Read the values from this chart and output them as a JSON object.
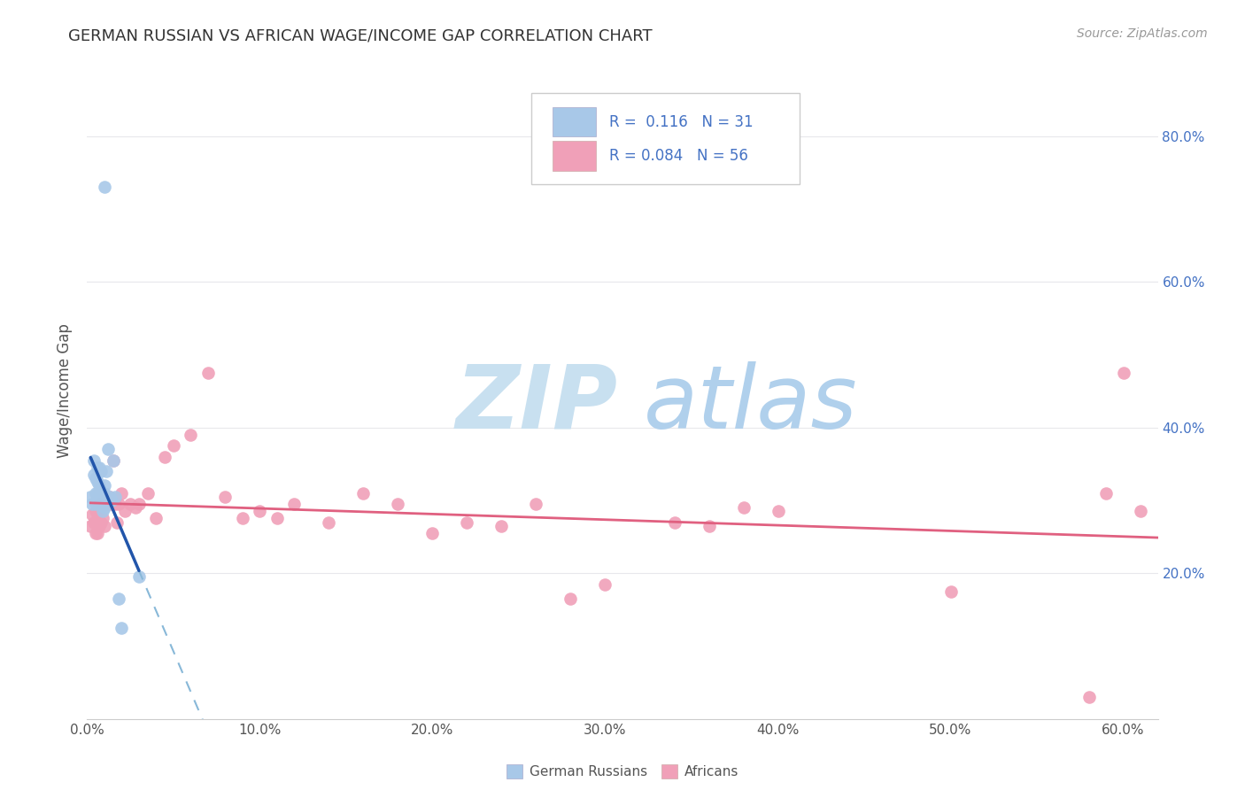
{
  "title": "GERMAN RUSSIAN VS AFRICAN WAGE/INCOME GAP CORRELATION CHART",
  "source": "Source: ZipAtlas.com",
  "ylabel": "Wage/Income Gap",
  "xlim": [
    0.0,
    0.62
  ],
  "ylim": [
    0.0,
    0.9
  ],
  "x_ticks": [
    0.0,
    0.1,
    0.2,
    0.3,
    0.4,
    0.5,
    0.6
  ],
  "y_ticks_right": [
    0.2,
    0.4,
    0.6,
    0.8
  ],
  "R_blue": 0.116,
  "N_blue": 31,
  "R_pink": 0.084,
  "N_pink": 56,
  "blue_scatter_color": "#a8c8e8",
  "blue_line_color": "#2255aa",
  "blue_dash_color": "#88b8d8",
  "pink_scatter_color": "#f0a0b8",
  "pink_line_color": "#e06080",
  "watermark_zip_color": "#c8e0f0",
  "watermark_atlas_color": "#b0d0ec",
  "bg_color": "#ffffff",
  "grid_color": "#e8e8ec",
  "right_label_color": "#4472c4",
  "blue_x": [
    0.002,
    0.003,
    0.004,
    0.004,
    0.005,
    0.005,
    0.005,
    0.006,
    0.006,
    0.006,
    0.007,
    0.007,
    0.007,
    0.008,
    0.008,
    0.008,
    0.009,
    0.009,
    0.01,
    0.01,
    0.01,
    0.011,
    0.012,
    0.013,
    0.014,
    0.015,
    0.016,
    0.018,
    0.02,
    0.03,
    0.01
  ],
  "blue_y": [
    0.305,
    0.295,
    0.335,
    0.355,
    0.295,
    0.31,
    0.33,
    0.31,
    0.325,
    0.345,
    0.3,
    0.32,
    0.345,
    0.31,
    0.295,
    0.34,
    0.285,
    0.305,
    0.31,
    0.29,
    0.32,
    0.34,
    0.37,
    0.305,
    0.3,
    0.355,
    0.305,
    0.165,
    0.125,
    0.195,
    0.73
  ],
  "pink_x": [
    0.002,
    0.003,
    0.004,
    0.005,
    0.005,
    0.006,
    0.006,
    0.007,
    0.007,
    0.008,
    0.008,
    0.009,
    0.01,
    0.01,
    0.011,
    0.012,
    0.013,
    0.014,
    0.015,
    0.016,
    0.017,
    0.018,
    0.02,
    0.022,
    0.025,
    0.028,
    0.03,
    0.035,
    0.04,
    0.045,
    0.05,
    0.06,
    0.07,
    0.08,
    0.09,
    0.1,
    0.11,
    0.12,
    0.14,
    0.16,
    0.18,
    0.2,
    0.22,
    0.24,
    0.26,
    0.28,
    0.3,
    0.34,
    0.36,
    0.38,
    0.4,
    0.5,
    0.58,
    0.59,
    0.6,
    0.61
  ],
  "pink_y": [
    0.265,
    0.28,
    0.27,
    0.285,
    0.255,
    0.275,
    0.255,
    0.295,
    0.265,
    0.29,
    0.27,
    0.275,
    0.295,
    0.265,
    0.295,
    0.295,
    0.305,
    0.295,
    0.355,
    0.295,
    0.27,
    0.295,
    0.31,
    0.285,
    0.295,
    0.29,
    0.295,
    0.31,
    0.275,
    0.36,
    0.375,
    0.39,
    0.475,
    0.305,
    0.275,
    0.285,
    0.275,
    0.295,
    0.27,
    0.31,
    0.295,
    0.255,
    0.27,
    0.265,
    0.295,
    0.165,
    0.185,
    0.27,
    0.265,
    0.29,
    0.285,
    0.175,
    0.03,
    0.31,
    0.475,
    0.285
  ],
  "blue_trend_x_start": 0.002,
  "blue_trend_x_solid_end": 0.03,
  "blue_trend_x_dash_end": 0.62,
  "pink_trend_x_start": 0.002,
  "pink_trend_x_end": 0.62
}
